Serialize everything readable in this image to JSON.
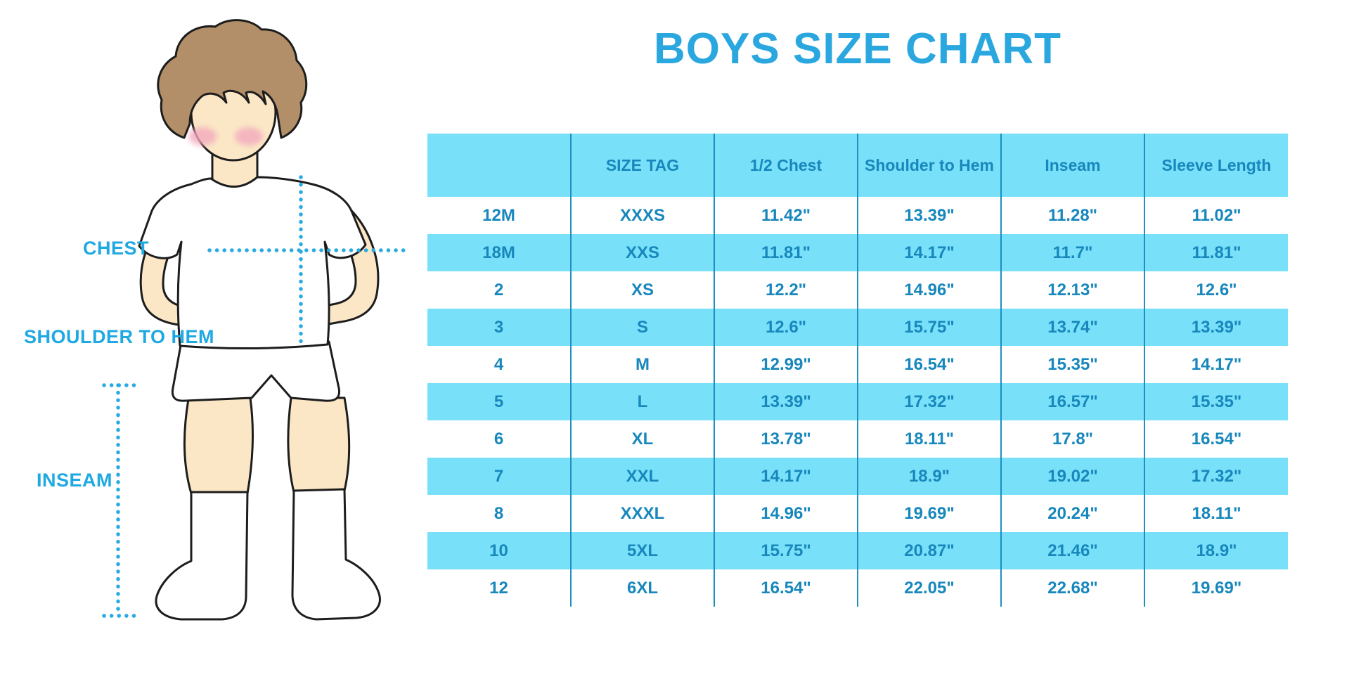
{
  "title": "BOYS SIZE CHART",
  "illustration": {
    "description": "cartoon boy standing, hands behind back, white t-shirt, white shorts and white socks, with dotted measurement guides",
    "labels": {
      "chest": "CHEST",
      "shoulder_to_hem": "SHOULDER TO HEM",
      "inseam": "INSEAM"
    }
  },
  "colors": {
    "band": "#79E0FA",
    "table-text": "#1787BC",
    "separator": "#1F8FC0",
    "title-color": "#2AA7DF",
    "label-color": "#1FA9E2",
    "measure": "#29ABE2",
    "skin": "#FBE7C6",
    "hair": "#B28F68",
    "blush": "#F3A9BE",
    "outline": "#1d1d1d",
    "bg": "#FFFFFF"
  },
  "chart_data": {
    "type": "table",
    "title": "BOYS SIZE CHART",
    "headers": [
      "",
      "SIZE TAG",
      "1/2 Chest",
      "Shoulder to Hem",
      "Inseam",
      "Sleeve Length"
    ],
    "rows": [
      [
        "12M",
        "XXXS",
        "11.42\"",
        "13.39\"",
        "11.28\"",
        "11.02\""
      ],
      [
        "18M",
        "XXS",
        "11.81\"",
        "14.17\"",
        "11.7\"",
        "11.81\""
      ],
      [
        "2",
        "XS",
        "12.2\"",
        "14.96\"",
        "12.13\"",
        "12.6\""
      ],
      [
        "3",
        "S",
        "12.6\"",
        "15.75\"",
        "13.74\"",
        "13.39\""
      ],
      [
        "4",
        "M",
        "12.99\"",
        "16.54\"",
        "15.35\"",
        "14.17\""
      ],
      [
        "5",
        "L",
        "13.39\"",
        "17.32\"",
        "16.57\"",
        "15.35\""
      ],
      [
        "6",
        "XL",
        "13.78\"",
        "18.11\"",
        "17.8\"",
        "16.54\""
      ],
      [
        "7",
        "XXL",
        "14.17\"",
        "18.9\"",
        "19.02\"",
        "17.32\""
      ],
      [
        "8",
        "XXXL",
        "14.96\"",
        "19.69\"",
        "20.24\"",
        "18.11\""
      ],
      [
        "10",
        "5XL",
        "15.75\"",
        "20.87\"",
        "21.46\"",
        "18.9\""
      ],
      [
        "12",
        "6XL",
        "16.54\"",
        "22.05\"",
        "22.68\"",
        "19.69\""
      ]
    ],
    "striping": "header and every second data row are light blue, others white",
    "grid": "vertical column separators only, no horizontal lines"
  }
}
